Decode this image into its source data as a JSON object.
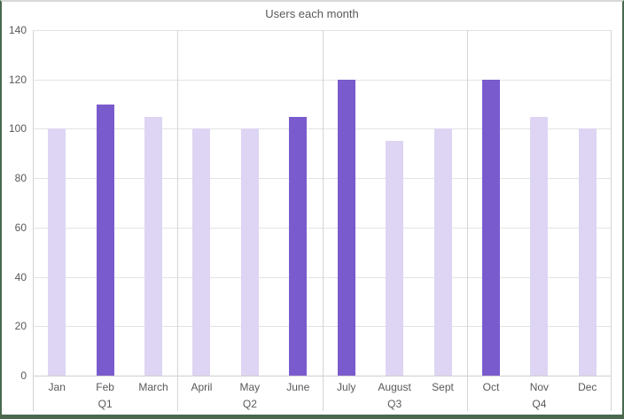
{
  "frame": {
    "border_color": "#4a6950",
    "top_border_color": "#d9d9d9",
    "background": "#ffffff"
  },
  "colors": {
    "bar_light": "#ddd5f3",
    "bar_dark": "#7a5bcd",
    "gridline": "#e3e3e3",
    "separator": "#d4d4d4",
    "axis_line": "#cfcfcf",
    "text": "#595959"
  },
  "chart_data": {
    "type": "bar",
    "title": "Users each month",
    "xlabel": "",
    "ylabel": "",
    "ylim": [
      0,
      140
    ],
    "yticks": [
      0,
      20,
      40,
      60,
      80,
      100,
      120,
      140
    ],
    "grid": true,
    "legend": false,
    "categories": [
      "Jan",
      "Feb",
      "March",
      "April",
      "May",
      "June",
      "July",
      "August",
      "Sept",
      "Oct",
      "Nov",
      "Dec"
    ],
    "values": [
      100,
      110,
      105,
      100,
      100,
      105,
      120,
      95,
      100,
      120,
      105,
      100
    ],
    "emphasized_months": [
      "Feb",
      "June",
      "July",
      "Oct"
    ],
    "groups": [
      {
        "label": "Q1",
        "months": [
          "Jan",
          "Feb",
          "March"
        ],
        "values": [
          100,
          110,
          105
        ],
        "dark": [
          false,
          true,
          false
        ]
      },
      {
        "label": "Q2",
        "months": [
          "April",
          "May",
          "June"
        ],
        "values": [
          100,
          100,
          105
        ],
        "dark": [
          false,
          false,
          true
        ]
      },
      {
        "label": "Q3",
        "months": [
          "July",
          "August",
          "Sept"
        ],
        "values": [
          120,
          95,
          100
        ],
        "dark": [
          true,
          false,
          false
        ]
      },
      {
        "label": "Q4",
        "months": [
          "Oct",
          "Nov",
          "Dec"
        ],
        "values": [
          120,
          105,
          100
        ],
        "dark": [
          true,
          false,
          false
        ]
      }
    ]
  }
}
